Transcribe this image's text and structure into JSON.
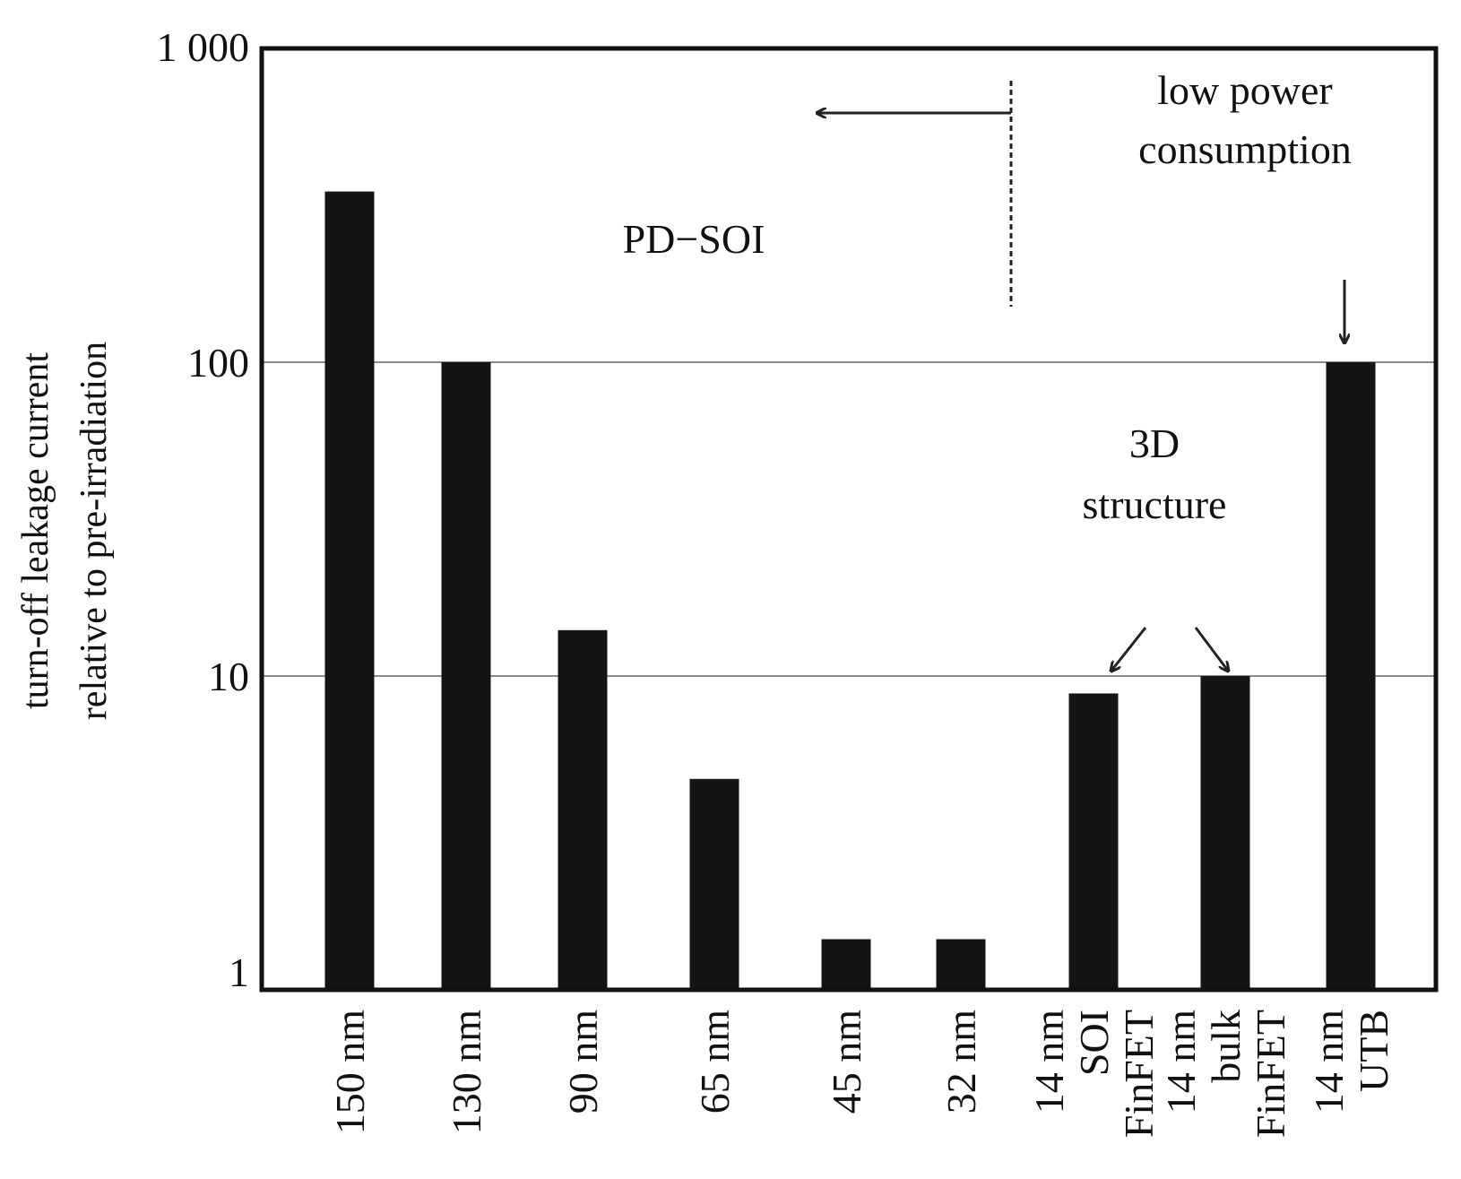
{
  "chart_data": {
    "type": "bar",
    "title": "",
    "ylabel_lines": [
      "turn-off leakage current",
      "relative to pre-irradiation"
    ],
    "yscale": "log",
    "ylim": [
      1,
      1000
    ],
    "yticks": [
      {
        "value": 1,
        "label": "1"
      },
      {
        "value": 10,
        "label": "10"
      },
      {
        "value": 100,
        "label": "100"
      },
      {
        "value": 1000,
        "label": "1 000"
      }
    ],
    "grid_y": [
      10,
      100
    ],
    "categories": [
      {
        "lines": [
          "150 nm"
        ],
        "value": 350
      },
      {
        "lines": [
          "130 nm"
        ],
        "value": 100
      },
      {
        "lines": [
          "90 nm"
        ],
        "value": 14
      },
      {
        "lines": [
          "65 nm"
        ],
        "value": 4.7
      },
      {
        "lines": [
          "45 nm"
        ],
        "value": 1.45
      },
      {
        "lines": [
          "32 nm"
        ],
        "value": 1.45
      },
      {
        "lines": [
          "14 nm",
          "SOI",
          "FinFET"
        ],
        "value": 8.8
      },
      {
        "lines": [
          "14 nm",
          "bulk",
          "FinFET"
        ],
        "value": 10
      },
      {
        "lines": [
          "14 nm",
          "UTB"
        ],
        "value": 100
      }
    ],
    "bar_color": "#141414",
    "annotations": {
      "pd_soi": "PD−SOI",
      "low_power": [
        "low power",
        "consumption"
      ],
      "structure_3d": [
        "3D",
        "structure"
      ]
    }
  }
}
